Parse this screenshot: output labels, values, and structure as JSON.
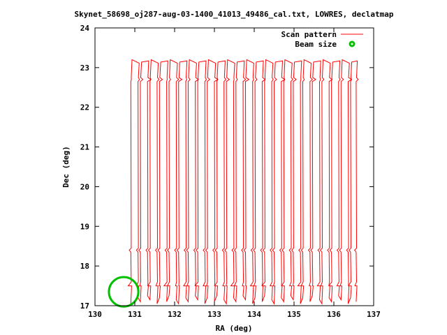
{
  "chart_data": {
    "type": "line",
    "title": "Skynet_58698_oj287-aug-03-1400_41013_49486_cal.txt, LOWRES, declatmap",
    "xlabel": "RA (deg)",
    "ylabel": "Dec (deg)",
    "xlim": [
      130,
      137
    ],
    "ylim": [
      17,
      24
    ],
    "xticks": [
      "130",
      "131",
      "132",
      "133",
      "134",
      "135",
      "136",
      "137"
    ],
    "yticks": [
      "17",
      "18",
      "19",
      "20",
      "21",
      "22",
      "23",
      "24"
    ],
    "grid": false,
    "legend_position": "top-right",
    "series": [
      {
        "name": "Scan pattern",
        "color": "#ff0000",
        "sweep_ra": [
          130.9,
          131.02,
          131.14,
          131.26,
          131.38,
          131.5,
          131.62,
          131.74,
          131.86,
          131.98,
          132.1,
          132.22,
          132.34,
          132.46,
          132.58,
          132.7,
          132.82,
          132.94,
          133.06,
          133.18,
          133.3,
          133.42,
          133.54,
          133.66,
          133.78,
          133.9,
          134.02,
          134.14,
          134.26,
          134.38,
          134.5,
          134.62,
          134.74,
          134.86,
          134.98,
          135.1,
          135.22,
          135.34,
          135.46,
          135.58,
          135.7,
          135.82,
          135.94,
          136.06,
          136.18,
          136.3,
          136.42,
          136.5
        ],
        "dec_range": [
          17.05,
          23.2
        ]
      },
      {
        "name": "Beam size",
        "color": "#00c000",
        "center": [
          130.72,
          17.35
        ],
        "radius_deg": 0.37
      }
    ]
  }
}
